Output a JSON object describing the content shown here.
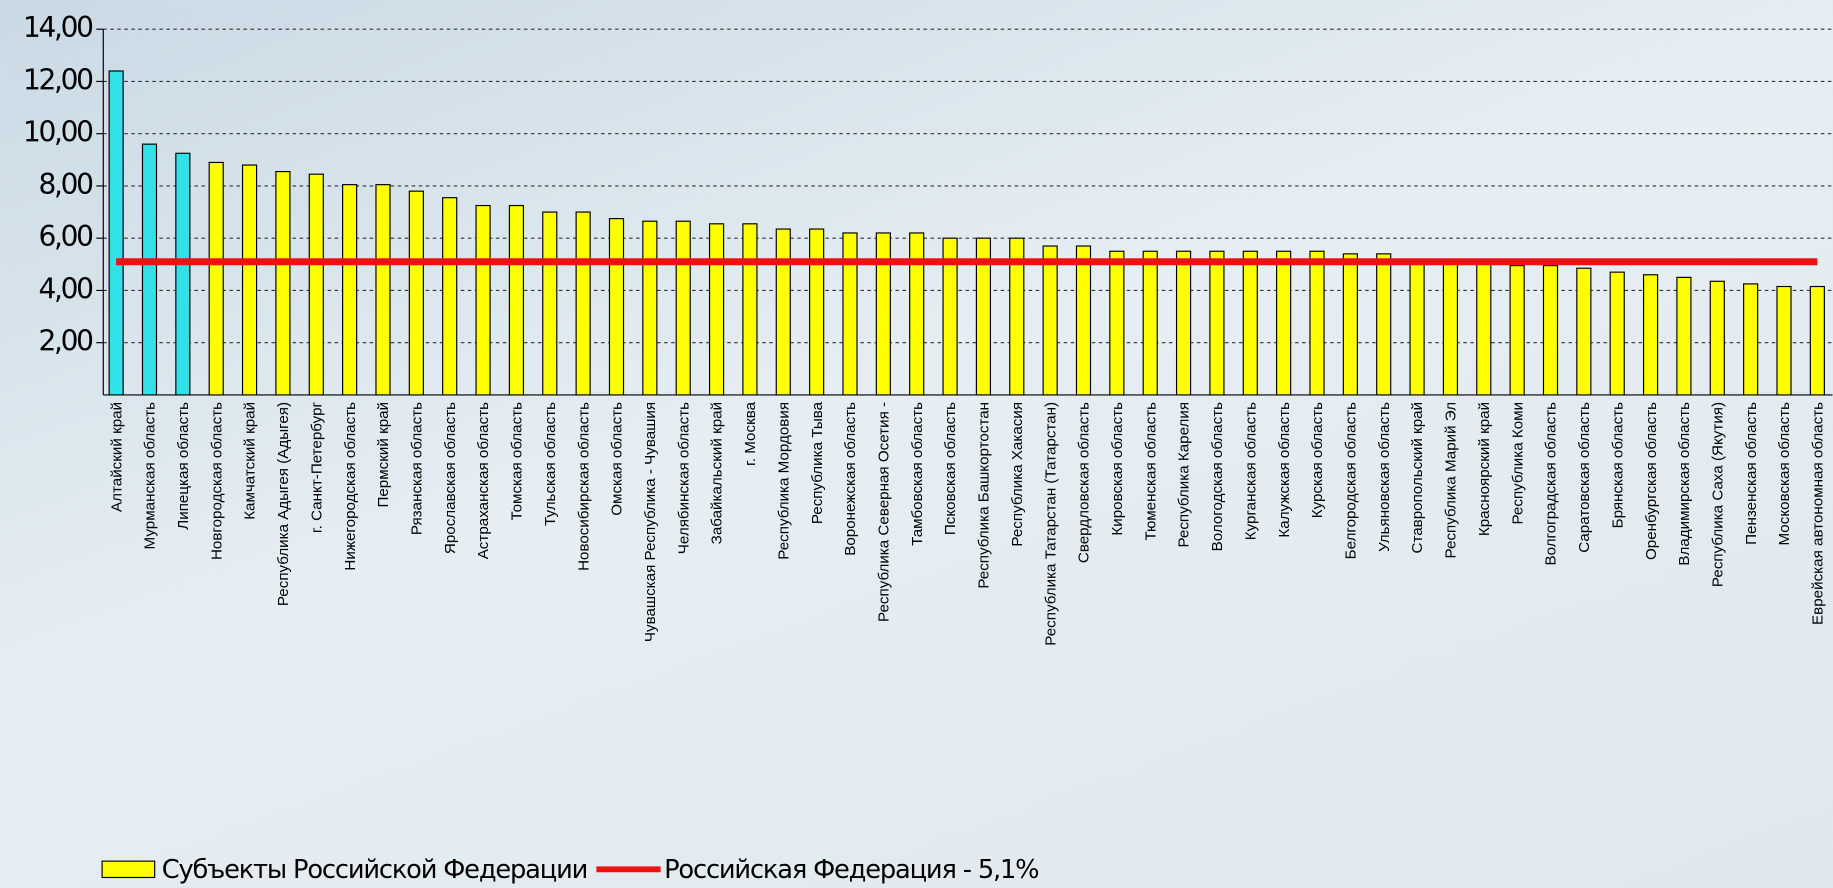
{
  "chart_data": {
    "type": "bar",
    "categories": [
      "Алтайский край",
      "Мурманская область",
      "Липецкая область",
      "Новгородская область",
      "Камчатский край",
      "Республика Адыгея (Адыгея)",
      "г. Санкт-Петербург",
      "Нижегородская область",
      "Пермский край",
      "Рязанская область",
      "Ярославская область",
      "Астраханская область",
      "Томская область",
      "Тульская область",
      "Новосибирская область",
      "Омская область",
      "Чувашская Республика - Чувашия",
      "Челябинская область",
      "Забайкальский край",
      "г. Москва",
      "Республика Мордовия",
      "Республика Тыва",
      "Воронежская область",
      "Республика Северная Осетия -",
      "Тамбовская область",
      "Псковская область",
      "Республика Башкортостан",
      "Республика Хакасия",
      "Республика Татарстан (Татарстан)",
      "Свердловская область",
      "Кировская область",
      "Тюменская область",
      "Республика Карелия",
      "Вологодская область",
      "Курганская область",
      "Калужская область",
      "Курская область",
      "Белгородская область",
      "Ульяновская область",
      "Ставропольский край",
      "Республика Марий Эл",
      "Красноярский край",
      "Республика Коми",
      "Волгоградская область",
      "Саратовская область",
      "Брянская область",
      "Оренбургская область",
      "Владимирская область",
      "Республика Саха (Якутия)",
      "Пензенская область",
      "Московская область",
      "Еврейская автономная область"
    ],
    "series": [
      {
        "name": "Субъекты Российской Федерации",
        "color": "#ffff00",
        "colors": [
          "#33e0e8",
          "#33e0e8",
          "#33e0e8",
          "#ffff00",
          "#ffff00",
          "#ffff00",
          "#ffff00",
          "#ffff00",
          "#ffff00",
          "#ffff00",
          "#ffff00",
          "#ffff00",
          "#ffff00",
          "#ffff00",
          "#ffff00",
          "#ffff00",
          "#ffff00",
          "#ffff00",
          "#ffff00",
          "#ffff00",
          "#ffff00",
          "#ffff00",
          "#ffff00",
          "#ffff00",
          "#ffff00",
          "#ffff00",
          "#ffff00",
          "#ffff00",
          "#ffff00",
          "#ffff00",
          "#ffff00",
          "#ffff00",
          "#ffff00",
          "#ffff00",
          "#ffff00",
          "#ffff00",
          "#ffff00",
          "#ffff00",
          "#ffff00",
          "#ffff00",
          "#ffff00",
          "#ffff00",
          "#ffff00",
          "#ffff00",
          "#ffff00",
          "#ffff00",
          "#ffff00",
          "#ffff00",
          "#ffff00",
          "#ffff00",
          "#ffff00",
          "#ffff00"
        ],
        "values": [
          12.4,
          9.6,
          9.25,
          8.9,
          8.8,
          8.55,
          8.45,
          8.05,
          8.05,
          7.8,
          7.55,
          7.25,
          7.25,
          7.0,
          7.0,
          6.75,
          6.65,
          6.65,
          6.55,
          6.55,
          6.35,
          6.35,
          6.2,
          6.2,
          6.2,
          6.0,
          6.0,
          6.0,
          5.7,
          5.7,
          5.5,
          5.5,
          5.5,
          5.5,
          5.5,
          5.5,
          5.5,
          5.4,
          5.4,
          5.2,
          5.2,
          5.15,
          4.95,
          4.95,
          4.85,
          4.7,
          4.6,
          4.5,
          4.35,
          4.25,
          4.15,
          4.15
        ]
      }
    ],
    "reference_line": {
      "name": "Российская Федерация - 5,1%",
      "value": 5.1,
      "color": "#ee1111"
    },
    "ylim": [
      0,
      14
    ],
    "yticks": [
      {
        "value": 2,
        "label": "2,00"
      },
      {
        "value": 4,
        "label": "4,00"
      },
      {
        "value": 6,
        "label": "6,00"
      },
      {
        "value": 8,
        "label": "8,00"
      },
      {
        "value": 10,
        "label": "10,00"
      },
      {
        "value": 12,
        "label": "12,00"
      },
      {
        "value": 14,
        "label": "14,00"
      }
    ],
    "grid": true,
    "legend": "bottom-left"
  }
}
